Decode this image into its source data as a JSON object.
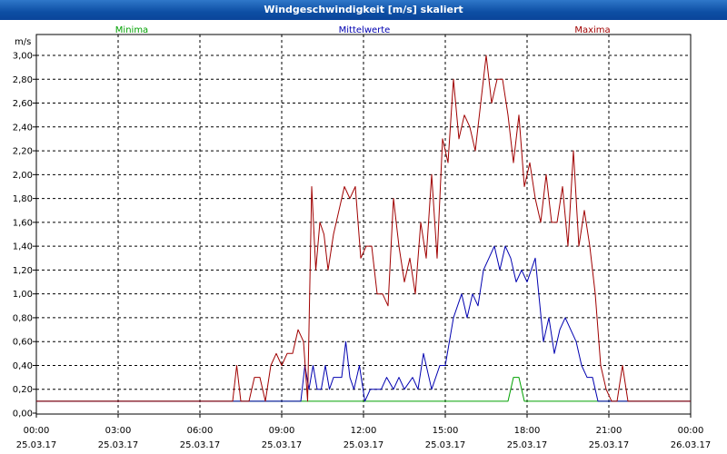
{
  "window": {
    "title": "Windgeschwindigkeit [m/s] skaliert"
  },
  "colors": {
    "minima": "#00a000",
    "mittelwerte": "#0000b0",
    "maxima": "#a00000",
    "grid": "#000000",
    "titlebar": "#0d4fa4"
  },
  "chart_data": {
    "type": "line",
    "title": "Windgeschwindigkeit [m/s] skaliert",
    "unit_label": "m/s",
    "ylim": [
      0,
      3.0
    ],
    "yticks": [
      "0,00",
      "0,20",
      "0,40",
      "0,60",
      "0,80",
      "1,00",
      "1,20",
      "1,40",
      "1,60",
      "1,80",
      "2,00",
      "2,20",
      "2,40",
      "2,60",
      "2,80",
      "3,00"
    ],
    "x_range_hours": [
      0,
      24
    ],
    "xticks": [
      {
        "time": "00:00",
        "date": "25.03.17"
      },
      {
        "time": "03:00",
        "date": "25.03.17"
      },
      {
        "time": "06:00",
        "date": "25.03.17"
      },
      {
        "time": "09:00",
        "date": "25.03.17"
      },
      {
        "time": "12:00",
        "date": "25.03.17"
      },
      {
        "time": "15:00",
        "date": "25.03.17"
      },
      {
        "time": "18:00",
        "date": "25.03.17"
      },
      {
        "time": "21:00",
        "date": "25.03.17"
      },
      {
        "time": "00:00",
        "date": "26.03.17"
      }
    ],
    "grid": true,
    "legend_position": "top",
    "series": [
      {
        "name": "Minima",
        "x": [
          0.0,
          17.3,
          17.5,
          17.7,
          17.9,
          21.0,
          24.0
        ],
        "y": [
          0.1,
          0.1,
          0.3,
          0.3,
          0.1,
          0.1,
          0.1
        ]
      },
      {
        "name": "Mittelwerte",
        "x": [
          0.0,
          9.0,
          9.7,
          9.85,
          10.0,
          10.15,
          10.3,
          10.45,
          10.6,
          10.75,
          10.9,
          11.05,
          11.2,
          11.35,
          11.5,
          11.65,
          11.85,
          12.05,
          12.25,
          12.45,
          12.65,
          12.85,
          13.1,
          13.3,
          13.5,
          13.8,
          14.0,
          14.2,
          14.5,
          14.8,
          15.0,
          15.3,
          15.6,
          15.8,
          16.0,
          16.2,
          16.4,
          16.6,
          16.8,
          17.0,
          17.2,
          17.4,
          17.6,
          17.8,
          18.0,
          18.3,
          18.6,
          18.8,
          19.0,
          19.2,
          19.4,
          19.6,
          19.8,
          20.0,
          20.2,
          20.4,
          20.6,
          20.8,
          21.0,
          24.0
        ],
        "y": [
          0.1,
          0.1,
          0.1,
          0.4,
          0.2,
          0.4,
          0.2,
          0.2,
          0.4,
          0.2,
          0.3,
          0.3,
          0.3,
          0.6,
          0.3,
          0.2,
          0.4,
          0.1,
          0.2,
          0.2,
          0.2,
          0.3,
          0.2,
          0.3,
          0.2,
          0.3,
          0.2,
          0.5,
          0.2,
          0.4,
          0.4,
          0.8,
          1.0,
          0.8,
          1.0,
          0.9,
          1.2,
          1.3,
          1.4,
          1.2,
          1.4,
          1.3,
          1.1,
          1.2,
          1.1,
          1.3,
          0.6,
          0.8,
          0.5,
          0.7,
          0.8,
          0.7,
          0.6,
          0.4,
          0.3,
          0.3,
          0.1,
          0.1,
          0.1,
          0.1
        ]
      },
      {
        "name": "Maxima",
        "x": [
          0.0,
          7.2,
          7.35,
          7.5,
          7.8,
          8.0,
          8.2,
          8.4,
          8.6,
          8.8,
          9.0,
          9.2,
          9.4,
          9.6,
          9.8,
          9.95,
          10.1,
          10.25,
          10.4,
          10.55,
          10.7,
          10.9,
          11.1,
          11.3,
          11.5,
          11.7,
          11.9,
          12.1,
          12.3,
          12.5,
          12.7,
          12.9,
          13.1,
          13.3,
          13.5,
          13.7,
          13.9,
          14.1,
          14.3,
          14.5,
          14.7,
          14.9,
          15.1,
          15.3,
          15.5,
          15.7,
          15.9,
          16.1,
          16.3,
          16.5,
          16.7,
          16.9,
          17.1,
          17.3,
          17.5,
          17.7,
          17.9,
          18.1,
          18.3,
          18.5,
          18.7,
          18.9,
          19.1,
          19.3,
          19.5,
          19.7,
          19.9,
          20.1,
          20.3,
          20.5,
          20.7,
          20.9,
          21.1,
          21.3,
          21.5,
          21.7,
          24.0
        ],
        "y": [
          0.1,
          0.1,
          0.4,
          0.1,
          0.1,
          0.3,
          0.3,
          0.1,
          0.4,
          0.5,
          0.4,
          0.5,
          0.5,
          0.7,
          0.6,
          0.1,
          1.9,
          1.2,
          1.6,
          1.5,
          1.2,
          1.5,
          1.7,
          1.9,
          1.8,
          1.9,
          1.3,
          1.4,
          1.4,
          1.0,
          1.0,
          0.9,
          1.8,
          1.4,
          1.1,
          1.3,
          1.0,
          1.6,
          1.3,
          2.0,
          1.3,
          2.3,
          2.1,
          2.8,
          2.3,
          2.5,
          2.4,
          2.2,
          2.6,
          3.0,
          2.6,
          2.8,
          2.8,
          2.5,
          2.1,
          2.5,
          1.9,
          2.1,
          1.8,
          1.6,
          2.0,
          1.6,
          1.6,
          1.9,
          1.4,
          2.2,
          1.4,
          1.7,
          1.4,
          1.0,
          0.4,
          0.2,
          0.1,
          0.1,
          0.4,
          0.1,
          0.1
        ]
      }
    ]
  }
}
